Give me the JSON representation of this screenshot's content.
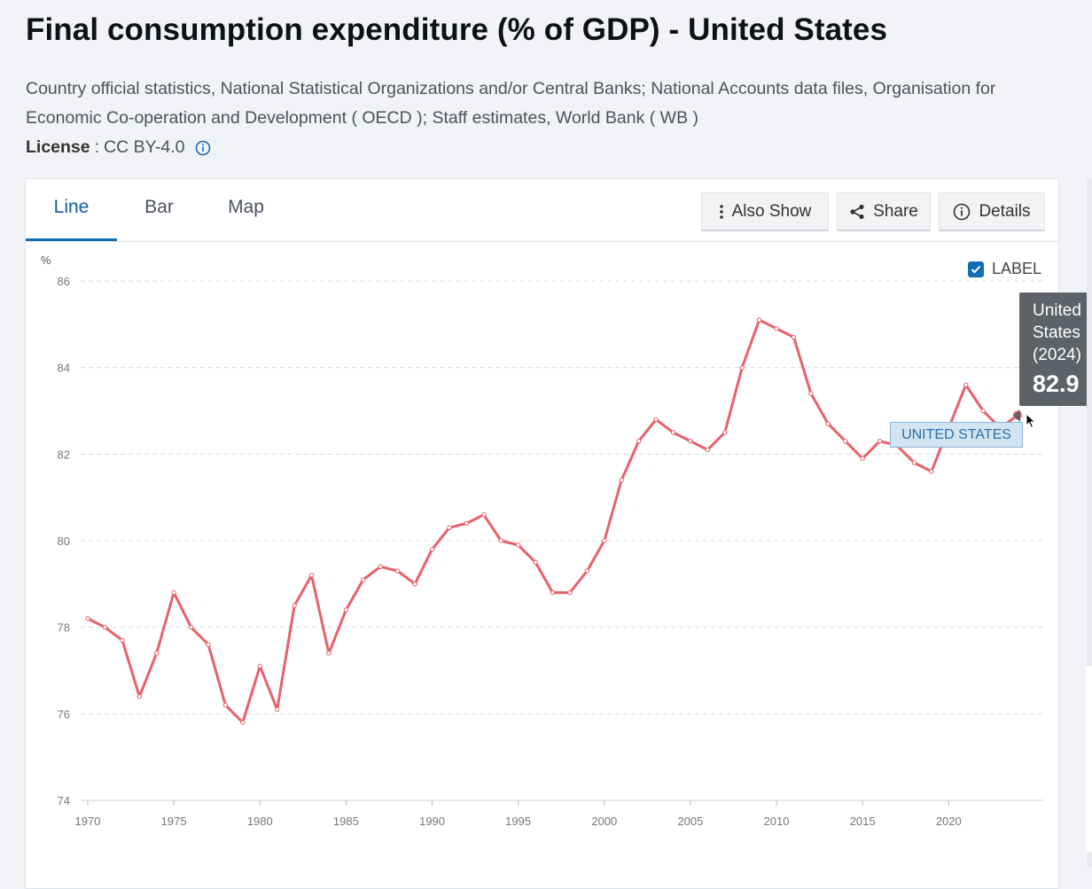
{
  "page": {
    "title": "Final consumption expenditure (% of GDP) - United States",
    "source": "Country official statistics, National Statistical Organizations and/or Central Banks; National Accounts data files, Organisation for Economic Co-operation and Development ( OECD ); Staff estimates, World Bank ( WB )",
    "license_label": "License",
    "license_sep": ":",
    "license_value": "CC BY-4.0"
  },
  "tabs": [
    {
      "label": "Line",
      "active": true
    },
    {
      "label": "Bar",
      "active": false
    },
    {
      "label": "Map",
      "active": false
    }
  ],
  "toolbar": {
    "also_show": "Also Show",
    "share": "Share",
    "details": "Details"
  },
  "label_toggle": {
    "text": "LABEL",
    "checked": true
  },
  "tooltip": {
    "line1": "United",
    "line2": "States",
    "line3": "(2024)",
    "value": "82.9"
  },
  "series_label": "UNITED STATES",
  "colors": {
    "line": "#e8616a",
    "accent": "#0f6cb6",
    "grid": "#d8dbe0"
  },
  "chart_data": {
    "type": "line",
    "title": "Final consumption expenditure (% of GDP) - United States",
    "ylabel": "%",
    "xlabel": "",
    "ylim": [
      74,
      86
    ],
    "yticks": [
      74,
      76,
      78,
      80,
      82,
      84,
      86
    ],
    "xticks": [
      1970,
      1975,
      1980,
      1985,
      1990,
      1995,
      2000,
      2005,
      2010,
      2015,
      2020
    ],
    "grid": true,
    "series": [
      {
        "name": "United States",
        "x": [
          1970,
          1971,
          1972,
          1973,
          1974,
          1975,
          1976,
          1977,
          1978,
          1979,
          1980,
          1981,
          1982,
          1983,
          1984,
          1985,
          1986,
          1987,
          1988,
          1989,
          1990,
          1991,
          1992,
          1993,
          1994,
          1995,
          1996,
          1997,
          1998,
          1999,
          2000,
          2001,
          2002,
          2003,
          2004,
          2005,
          2006,
          2007,
          2008,
          2009,
          2010,
          2011,
          2012,
          2013,
          2014,
          2015,
          2016,
          2017,
          2018,
          2019,
          2020,
          2021,
          2022,
          2023,
          2024
        ],
        "values": [
          78.2,
          78.0,
          77.7,
          76.4,
          77.4,
          78.8,
          78.0,
          77.6,
          76.2,
          75.8,
          77.1,
          76.1,
          78.5,
          79.2,
          77.4,
          78.4,
          79.1,
          79.4,
          79.3,
          79.0,
          79.8,
          80.3,
          80.4,
          80.6,
          80.0,
          79.9,
          79.5,
          78.8,
          78.8,
          79.3,
          80.0,
          81.4,
          82.3,
          82.8,
          82.5,
          82.3,
          82.1,
          82.5,
          84.0,
          85.1,
          84.9,
          84.7,
          83.4,
          82.7,
          82.3,
          81.9,
          82.3,
          82.2,
          81.8,
          81.6,
          82.6,
          83.6,
          83.0,
          82.6,
          82.9
        ]
      }
    ]
  }
}
